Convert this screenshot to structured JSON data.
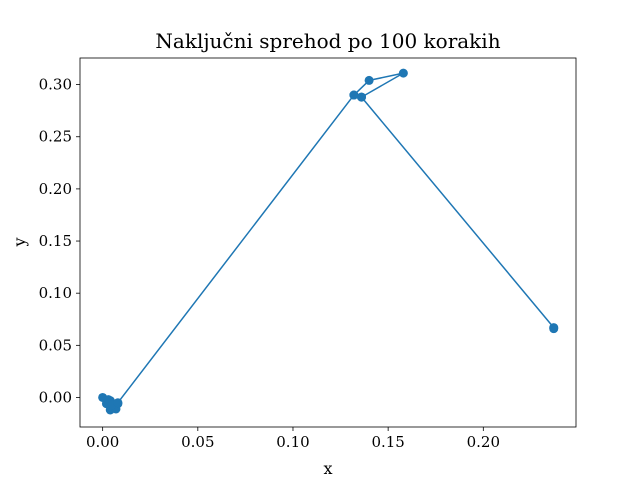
{
  "chart_data": {
    "type": "line",
    "title": "Naključni sprehod po 100 korakih",
    "xlabel": "x",
    "ylabel": "y",
    "xlim": [
      -0.0119,
      0.2487
    ],
    "ylim": [
      -0.0283,
      0.3255
    ],
    "xticks": [
      0.0,
      0.05,
      0.1,
      0.15,
      0.2
    ],
    "xtick_labels": [
      "0.00",
      "0.05",
      "0.10",
      "0.15",
      "0.20"
    ],
    "yticks": [
      0.0,
      0.05,
      0.1,
      0.15,
      0.2,
      0.25,
      0.3
    ],
    "ytick_labels": [
      "0.00",
      "0.05",
      "0.10",
      "0.15",
      "0.20",
      "0.25",
      "0.30"
    ],
    "grid": false,
    "legend": "none",
    "color": "#1f77b4",
    "markers": true,
    "x": [
      0.0,
      0.003,
      0.004,
      0.002,
      0.006,
      0.004,
      0.008,
      0.005,
      0.003,
      0.007,
      0.005,
      0.008,
      0.132,
      0.136,
      0.132,
      0.14,
      0.158,
      0.136,
      0.237,
      0.237
    ],
    "y": [
      0.0,
      -0.005,
      -0.012,
      -0.006,
      -0.008,
      -0.003,
      -0.006,
      -0.01,
      -0.002,
      -0.011,
      -0.007,
      -0.005,
      0.29,
      0.288,
      0.29,
      0.304,
      0.311,
      0.288,
      0.067,
      0.066
    ]
  }
}
